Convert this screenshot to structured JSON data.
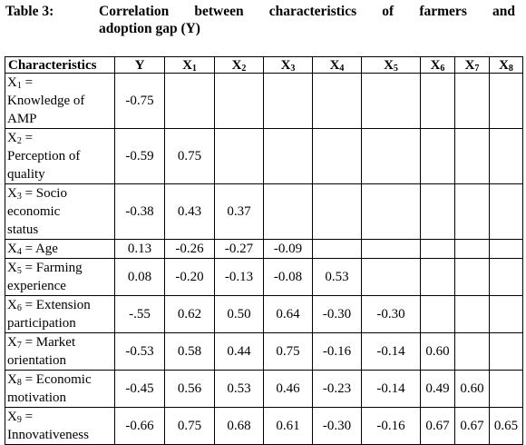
{
  "caption": {
    "label": "Table 3:",
    "line1": "Correlation between characteristics of farmers and",
    "line2": "adoption gap (Y)"
  },
  "table": {
    "headers": [
      {
        "base": "Characteristics",
        "sub": ""
      },
      {
        "base": "Y",
        "sub": ""
      },
      {
        "base": "X",
        "sub": "1"
      },
      {
        "base": "X",
        "sub": "2"
      },
      {
        "base": "X",
        "sub": "3"
      },
      {
        "base": "X",
        "sub": "4"
      },
      {
        "base": "X",
        "sub": "5"
      },
      {
        "base": "X",
        "sub": "6"
      },
      {
        "base": "X",
        "sub": "7"
      },
      {
        "base": "X",
        "sub": "8"
      }
    ],
    "rows": [
      {
        "var": "X",
        "sub": "1",
        "lines": [
          " =",
          "Knowledge of",
          "AMP"
        ],
        "values": [
          "-0.75",
          "",
          "",
          "",
          "",
          "",
          "",
          "",
          ""
        ]
      },
      {
        "var": "X",
        "sub": "2",
        "lines": [
          " =",
          "Perception of",
          "quality"
        ],
        "values": [
          "-0.59",
          "0.75",
          "",
          "",
          "",
          "",
          "",
          "",
          ""
        ]
      },
      {
        "var": "X",
        "sub": "3",
        "lines": [
          " = Socio",
          "economic",
          "status"
        ],
        "values": [
          "-0.38",
          "0.43",
          "0.37",
          "",
          "",
          "",
          "",
          "",
          ""
        ]
      },
      {
        "var": "X",
        "sub": "4",
        "lines": [
          " = Age"
        ],
        "values": [
          "0.13",
          "-0.26",
          "-0.27",
          "-0.09",
          "",
          "",
          "",
          "",
          ""
        ]
      },
      {
        "var": "X",
        "sub": "5",
        "lines": [
          " = Farming",
          "experience"
        ],
        "values": [
          "0.08",
          "-0.20",
          "-0.13",
          "-0.08",
          "0.53",
          "",
          "",
          "",
          ""
        ]
      },
      {
        "var": "X",
        "sub": "6",
        "lines": [
          " = Extension",
          "participation"
        ],
        "values": [
          "-.55",
          "0.62",
          "0.50",
          "0.64",
          "-0.30",
          "-0.30",
          "",
          "",
          ""
        ]
      },
      {
        "var": "X",
        "sub": "7",
        "lines": [
          " = Market",
          "orientation"
        ],
        "values": [
          "-0.53",
          "0.58",
          "0.44",
          "0.75",
          "-0.16",
          "-0.14",
          "0.60",
          "",
          ""
        ]
      },
      {
        "var": "X",
        "sub": "8",
        "lines": [
          " = Economic",
          "motivation"
        ],
        "values": [
          "-0.45",
          "0.56",
          "0.53",
          "0.46",
          "-0.23",
          "-0.14",
          "0.49",
          "0.60",
          ""
        ]
      },
      {
        "var": "X",
        "sub": "9",
        "lines": [
          " =",
          "Innovativeness"
        ],
        "values": [
          "-0.66",
          "0.75",
          "0.68",
          "0.61",
          "-0.30",
          "-0.16",
          "0.67",
          "0.67",
          "0.65"
        ]
      }
    ]
  }
}
